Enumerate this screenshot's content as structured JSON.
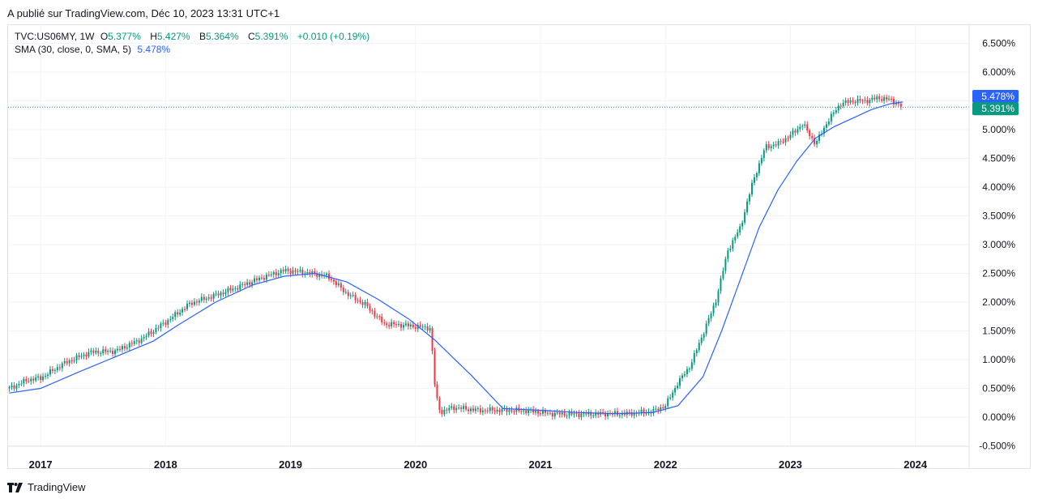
{
  "header": {
    "published": "A publié sur TradingView.com, Déc 10, 2023 13:31 UTC+1"
  },
  "legend": {
    "symbol": "TVC:US06MY, 1W",
    "o_label": "O",
    "o": "5.377%",
    "h_label": "H",
    "h": "5.427%",
    "l_label": "B",
    "l": "5.364%",
    "c_label": "C",
    "c": "5.391%",
    "change": "+0.010 (+0.19%)",
    "sma_label": "SMA (30, close, 0, SMA, 5)",
    "sma_value": "5.478%"
  },
  "footer": {
    "brand": "TradingView"
  },
  "colors": {
    "up": "#089981",
    "down": "#f23645",
    "sma": "#2962ff",
    "sma_badge": "#2962ff",
    "price_badge": "#089981",
    "grid": "#f0f3fa"
  },
  "chart_data": {
    "type": "line",
    "title": "",
    "xlabel": "",
    "ylabel": "",
    "ylim": [
      -0.5,
      6.75
    ],
    "y_ticks": [
      "-0.500%",
      "0.000%",
      "0.500%",
      "1.000%",
      "1.500%",
      "2.000%",
      "2.500%",
      "3.000%",
      "3.500%",
      "4.000%",
      "4.500%",
      "5.000%",
      "5.500%",
      "6.000%",
      "6.500%"
    ],
    "y_tick_values": [
      -0.5,
      0,
      0.5,
      1,
      1.5,
      2,
      2.5,
      3,
      3.5,
      4,
      4.5,
      5,
      5.5,
      6,
      6.5
    ],
    "x_ticks": [
      "2017",
      "2018",
      "2019",
      "2020",
      "2021",
      "2022",
      "2023",
      "2024"
    ],
    "x_tick_values": [
      2017.0,
      2018.0,
      2019.0,
      2020.0,
      2021.0,
      2022.0,
      2023.0,
      2024.0
    ],
    "xlim": [
      2016.74,
      2024.43
    ],
    "price_badges": [
      {
        "label": "5.478%",
        "value": 5.478,
        "kind": "sma"
      },
      {
        "label": "5.391%",
        "value": 5.391,
        "kind": "price"
      }
    ],
    "series": [
      {
        "name": "TVC:US06MY, 1W",
        "style": "candles",
        "x": [
          2016.75,
          2016.9,
          2017.0,
          2017.2,
          2017.4,
          2017.6,
          2017.8,
          2018.0,
          2018.2,
          2018.4,
          2018.6,
          2018.8,
          2018.95,
          2019.1,
          2019.3,
          2019.45,
          2019.6,
          2019.75,
          2019.9,
          2020.12,
          2020.16,
          2020.2,
          2020.3,
          2020.5,
          2020.7,
          2020.9,
          2021.1,
          2021.3,
          2021.5,
          2021.7,
          2021.9,
          2022.0,
          2022.1,
          2022.2,
          2022.3,
          2022.4,
          2022.5,
          2022.6,
          2022.7,
          2022.8,
          2022.9,
          2023.0,
          2023.1,
          2023.2,
          2023.3,
          2023.4,
          2023.5,
          2023.6,
          2023.7,
          2023.8,
          2023.9
        ],
        "values": [
          0.5,
          0.65,
          0.68,
          0.95,
          1.13,
          1.15,
          1.35,
          1.65,
          1.98,
          2.12,
          2.28,
          2.45,
          2.55,
          2.52,
          2.45,
          2.15,
          1.95,
          1.62,
          1.6,
          1.55,
          0.4,
          0.08,
          0.17,
          0.12,
          0.12,
          0.11,
          0.06,
          0.05,
          0.06,
          0.06,
          0.1,
          0.2,
          0.6,
          0.9,
          1.45,
          2.0,
          2.9,
          3.3,
          4.1,
          4.7,
          4.75,
          4.9,
          5.1,
          4.75,
          5.15,
          5.45,
          5.5,
          5.5,
          5.55,
          5.52,
          5.39
        ]
      },
      {
        "name": "SMA (30, close, 0, SMA, 5)",
        "style": "line",
        "x": [
          2016.75,
          2017.0,
          2017.3,
          2017.6,
          2017.9,
          2018.1,
          2018.4,
          2018.7,
          2018.95,
          2019.2,
          2019.45,
          2019.7,
          2019.95,
          2020.15,
          2020.45,
          2020.7,
          2021.0,
          2021.3,
          2021.6,
          2021.9,
          2022.1,
          2022.3,
          2022.45,
          2022.6,
          2022.75,
          2022.9,
          2023.05,
          2023.2,
          2023.35,
          2023.5,
          2023.65,
          2023.8,
          2023.9
        ],
        "values": [
          0.42,
          0.5,
          0.78,
          1.05,
          1.32,
          1.6,
          2.0,
          2.3,
          2.45,
          2.5,
          2.35,
          2.05,
          1.7,
          1.35,
          0.72,
          0.15,
          0.12,
          0.08,
          0.06,
          0.08,
          0.2,
          0.7,
          1.5,
          2.4,
          3.3,
          3.95,
          4.45,
          4.85,
          5.05,
          5.2,
          5.35,
          5.45,
          5.48
        ]
      }
    ]
  }
}
